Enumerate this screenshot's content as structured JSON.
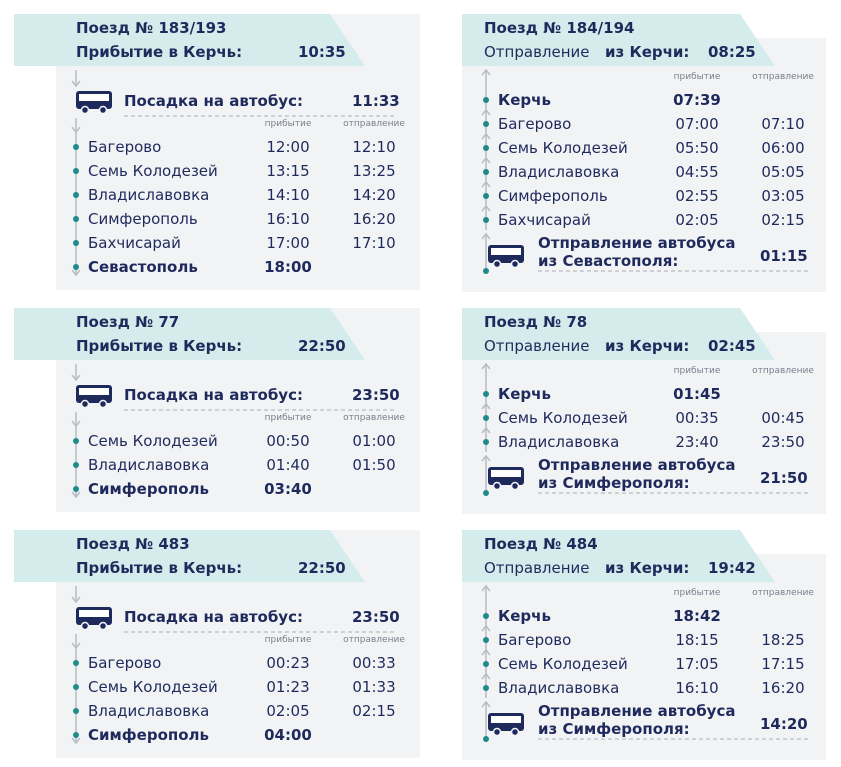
{
  "rows": [
    {
      "arrival": {
        "train": "Поезд № 183/193",
        "subtitle": "Прибытие в Керчь:",
        "time": "10:35",
        "bus_label": "Посадка на автобус:",
        "bus_time": "11:33",
        "col_arrival": "прибытие",
        "col_departure": "отправление",
        "stops": [
          {
            "name": "Багерово",
            "arrival": "12:00",
            "departure": "12:10"
          },
          {
            "name": "Семь Колодезей",
            "arrival": "13:15",
            "departure": "13:25"
          },
          {
            "name": "Владиславовка",
            "arrival": "14:10",
            "departure": "14:20"
          },
          {
            "name": "Симферополь",
            "arrival": "16:10",
            "departure": "16:20"
          },
          {
            "name": "Бахчисарай",
            "arrival": "17:00",
            "departure": "17:10"
          },
          {
            "name": "Севастополь",
            "arrival": "18:00"
          }
        ]
      },
      "departure": {
        "train": "Поезд № 184/194",
        "subtitle": "Отправление",
        "subtitle_bold": "из Керчи:",
        "time": "08:25",
        "col_arrival": "прибытие",
        "col_departure": "отправление",
        "stops": [
          {
            "name": "Керчь",
            "arrival": "07:39"
          },
          {
            "name": "Багерово",
            "arrival": "07:00",
            "departure": "07:10"
          },
          {
            "name": "Семь Колодезей",
            "arrival": "05:50",
            "departure": "06:00"
          },
          {
            "name": "Владиславовка",
            "arrival": "04:55",
            "departure": "05:05"
          },
          {
            "name": "Симферополь",
            "arrival": "02:55",
            "departure": "03:05"
          },
          {
            "name": "Бахчисарай",
            "arrival": "02:05",
            "departure": "02:15"
          }
        ],
        "bus_label": [
          "Отправление автобуса",
          "из Севастополя:"
        ],
        "bus_time": "01:15"
      }
    },
    {
      "arrival": {
        "train": "Поезд № 77",
        "subtitle": "Прибытие в Керчь:",
        "time": "22:50",
        "bus_label": "Посадка на автобус:",
        "bus_time": "23:50",
        "col_arrival": "прибытие",
        "col_departure": "отправление",
        "stops": [
          {
            "name": "Семь Колодезей",
            "arrival": "00:50",
            "departure": "01:00"
          },
          {
            "name": "Владиславовка",
            "arrival": "01:40",
            "departure": "01:50"
          },
          {
            "name": "Симферополь",
            "arrival": "03:40"
          }
        ]
      },
      "departure": {
        "train": "Поезд № 78",
        "subtitle": "Отправление",
        "subtitle_bold": "из Керчи:",
        "time": "02:45",
        "col_arrival": "прибытие",
        "col_departure": "отправление",
        "stops": [
          {
            "name": "Керчь",
            "arrival": "01:45"
          },
          {
            "name": "Семь Колодезей",
            "arrival": "00:35",
            "departure": "00:45"
          },
          {
            "name": "Владиславовка",
            "arrival": "23:40",
            "departure": "23:50"
          }
        ],
        "bus_label": [
          "Отправление автобуса",
          "из Симферополя:"
        ],
        "bus_time": "21:50"
      }
    },
    {
      "arrival": {
        "train": "Поезд № 483",
        "subtitle": "Прибытие в Керчь:",
        "time": "22:50",
        "bus_label": "Посадка на автобус:",
        "bus_time": "23:50",
        "col_arrival": "прибытие",
        "col_departure": "отправление",
        "stops": [
          {
            "name": "Багерово",
            "arrival": "00:23",
            "departure": "00:33"
          },
          {
            "name": "Семь Колодезей",
            "arrival": "01:23",
            "departure": "01:33"
          },
          {
            "name": "Владиславовка",
            "arrival": "02:05",
            "departure": "02:15"
          },
          {
            "name": "Симферополь",
            "arrival": "04:00"
          }
        ]
      },
      "departure": {
        "train": "Поезд № 484",
        "subtitle": "Отправление",
        "subtitle_bold": "из Керчи:",
        "time": "19:42",
        "col_arrival": "прибытие",
        "col_departure": "отправление",
        "stops": [
          {
            "name": "Керчь",
            "arrival": "18:42"
          },
          {
            "name": "Багерово",
            "arrival": "18:15",
            "departure": "18:25"
          },
          {
            "name": "Семь Колодезей",
            "arrival": "17:05",
            "departure": "17:15"
          },
          {
            "name": "Владиславовка",
            "arrival": "16:10",
            "departure": "16:20"
          }
        ],
        "bus_label": [
          "Отправление автобуса",
          "из Симферополя:"
        ],
        "bus_time": "14:20"
      }
    }
  ]
}
